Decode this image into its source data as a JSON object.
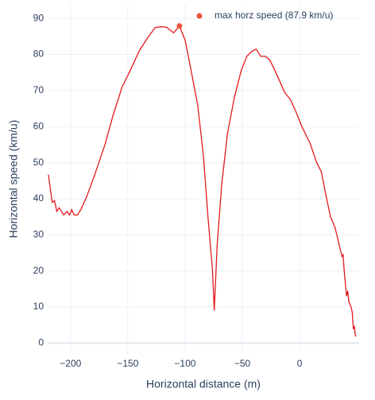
{
  "chart_data": {
    "type": "line",
    "xlabel": "Horizontal distance (m)",
    "ylabel": "Horizontal speed (km/u)",
    "xlim": [
      -220,
      52
    ],
    "ylim": [
      -3,
      94
    ],
    "xticks": [
      {
        "value": -200,
        "label": "−200"
      },
      {
        "value": -150,
        "label": "−150"
      },
      {
        "value": -100,
        "label": "−100"
      },
      {
        "value": -50,
        "label": "−50"
      },
      0
    ],
    "yticks": [
      0,
      10,
      20,
      30,
      40,
      50,
      60,
      70,
      80,
      90
    ],
    "grid": true,
    "legend": "top-right",
    "series": [
      {
        "color": "#e31a1c",
        "mode": "lines",
        "x": [
          -219.4,
          -216,
          -214,
          -212,
          -210,
          -206,
          -203,
          -201,
          -199,
          -197,
          -194,
          -191,
          -186,
          -178,
          -170,
          -163,
          -155,
          -148,
          -140,
          -133,
          -126,
          -120,
          -116,
          -110,
          -104.9,
          -100,
          -95,
          -89,
          -84,
          -80,
          -76,
          -74.5,
          -72,
          -68,
          -63,
          -57,
          -51,
          -46,
          -42,
          -38,
          -34,
          -30,
          -26,
          -20,
          -13,
          -8,
          -3,
          2,
          9,
          15,
          19,
          23,
          27,
          31,
          34,
          37,
          38,
          39,
          41,
          42,
          43,
          45,
          46,
          47,
          48,
          48.5,
          49
        ],
        "values": [
          46.7,
          39,
          39.5,
          36.5,
          37.5,
          35.5,
          36.5,
          35.5,
          37,
          35.5,
          35.5,
          37,
          40.5,
          47.5,
          55,
          63,
          71,
          75.5,
          81,
          84.5,
          87.5,
          87.7,
          87.5,
          86,
          87.9,
          84,
          76,
          66,
          52,
          35,
          20,
          9,
          27,
          44,
          58,
          68,
          75.5,
          79.5,
          80.8,
          81.5,
          79.5,
          79.5,
          78.5,
          74.5,
          69.5,
          67.5,
          64,
          60,
          55.5,
          50,
          47.5,
          41,
          35,
          32,
          28,
          24,
          24.5,
          20,
          13,
          14.5,
          11.5,
          10,
          8.5,
          4,
          4.5,
          2.5,
          1.8
        ]
      },
      {
        "name": "max horz speed (87.9 km/u)",
        "color": "#ef553b",
        "mode": "markers",
        "x": [
          -104.9
        ],
        "values": [
          87.9
        ]
      }
    ]
  }
}
